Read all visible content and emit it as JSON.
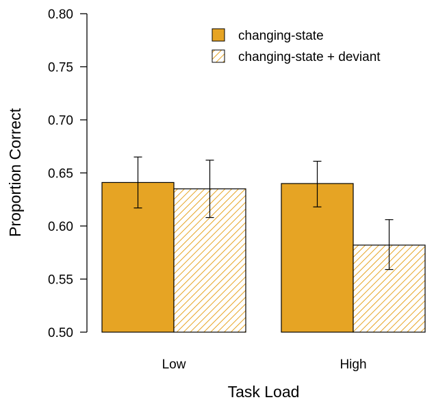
{
  "chart_data": {
    "type": "bar",
    "title": "",
    "xlabel": "Task Load",
    "ylabel": "Proportion Correct",
    "categories": [
      "Low",
      "High"
    ],
    "ylim": [
      0.5,
      0.8
    ],
    "yticks": [
      "0.50",
      "0.55",
      "0.60",
      "0.65",
      "0.70",
      "0.75",
      "0.80"
    ],
    "grid": false,
    "legend_position": "top-right",
    "series": [
      {
        "name": "changing-state",
        "color": "#E6A424",
        "fill": "solid",
        "values": [
          0.641,
          0.64
        ],
        "error_low": [
          0.617,
          0.618
        ],
        "error_high": [
          0.665,
          0.661
        ]
      },
      {
        "name": "changing-state + deviant",
        "color": "#E6A424",
        "fill": "hatched",
        "values": [
          0.635,
          0.582
        ],
        "error_low": [
          0.608,
          0.559
        ],
        "error_high": [
          0.662,
          0.606
        ]
      }
    ]
  }
}
